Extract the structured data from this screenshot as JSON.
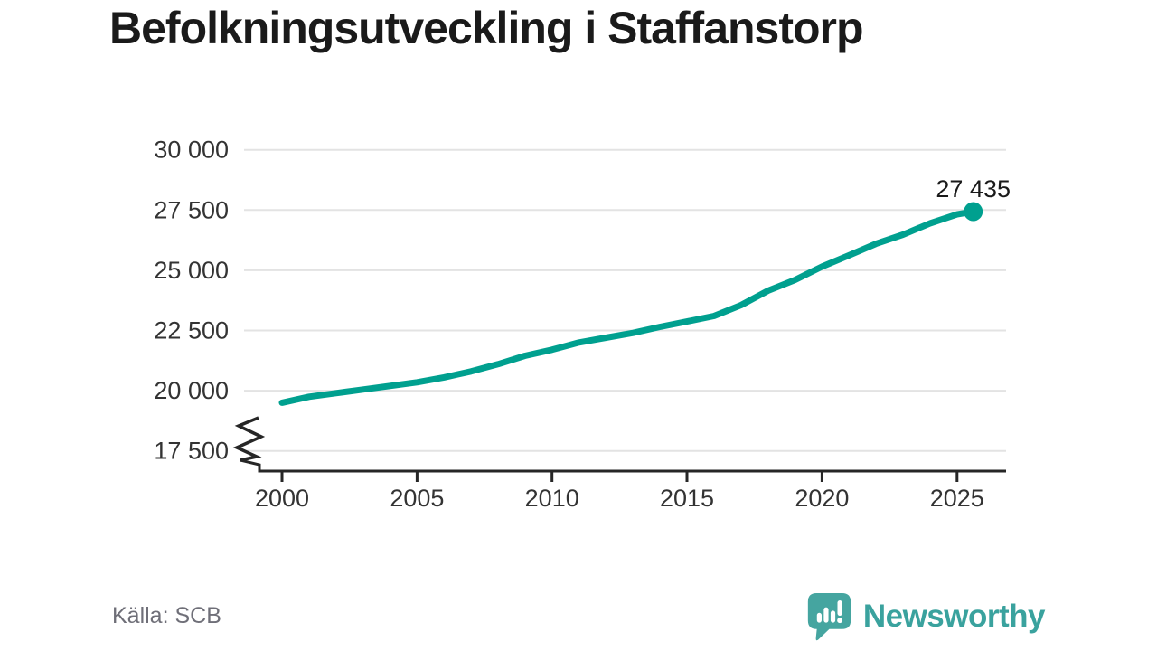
{
  "chart_data": {
    "type": "line",
    "title": "Befolkningsutveckling i Staffanstorp",
    "x": [
      2000,
      2001,
      2002,
      2003,
      2004,
      2005,
      2006,
      2007,
      2008,
      2009,
      2010,
      2011,
      2012,
      2013,
      2014,
      2015,
      2016,
      2017,
      2018,
      2019,
      2020,
      2021,
      2022,
      2023,
      2024,
      2025,
      2025.6
    ],
    "values": [
      19500,
      19750,
      19900,
      20050,
      20200,
      20350,
      20550,
      20800,
      21100,
      21450,
      21700,
      22000,
      22200,
      22400,
      22650,
      22870,
      23100,
      23550,
      24150,
      24600,
      25150,
      25620,
      26100,
      26480,
      26950,
      27320,
      27435
    ],
    "end_label": "27 435",
    "end_value": 27435,
    "x_ticks": [
      {
        "label": "2000",
        "value": 2000
      },
      {
        "label": "2005",
        "value": 2005
      },
      {
        "label": "2010",
        "value": 2010
      },
      {
        "label": "2015",
        "value": 2015
      },
      {
        "label": "2020",
        "value": 2020
      },
      {
        "label": "2025",
        "value": 2025
      }
    ],
    "y_ticks": [
      {
        "label": "17 500",
        "value": 17500
      },
      {
        "label": "20 000",
        "value": 20000
      },
      {
        "label": "22 500",
        "value": 22500
      },
      {
        "label": "25 000",
        "value": 25000
      },
      {
        "label": "27 500",
        "value": 27500
      },
      {
        "label": "30 000",
        "value": 30000
      }
    ],
    "xlim": [
      1998.6,
      2026.8
    ],
    "ylim": [
      17500,
      30000
    ],
    "y_axis_break": true,
    "grid": true,
    "legend_position": "none",
    "colors": {
      "line": "#00a08f",
      "grid": "#e3e3e3",
      "axis": "#262626",
      "tick_label": "#333333",
      "end_label": "#1a1a1a"
    }
  },
  "footer": {
    "source": "Källa: SCB",
    "brand": "Newsworthy",
    "brand_color": "#3aa29e",
    "icons": {
      "logo": "newsworthy-speech-bubble-bar-chart-icon"
    }
  }
}
